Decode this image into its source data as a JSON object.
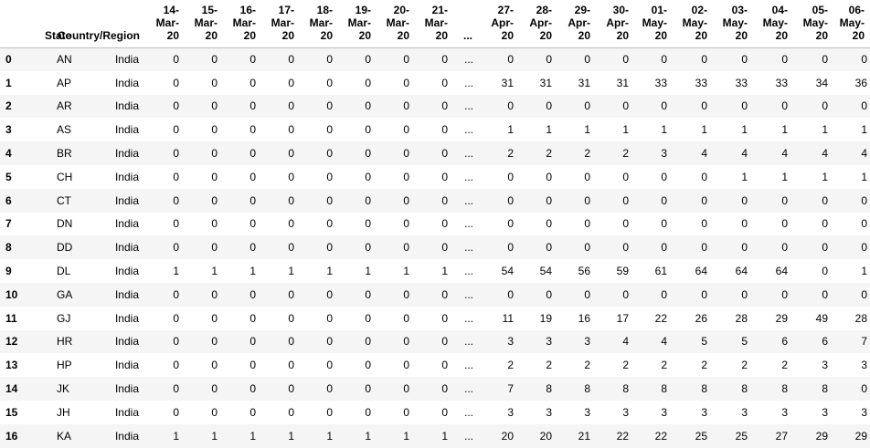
{
  "table": {
    "headers": {
      "index": "",
      "state": "State",
      "country": "Country/Region",
      "dates_left": [
        "14-\nMar-\n20",
        "15-\nMar-\n20",
        "16-\nMar-\n20",
        "17-\nMar-\n20",
        "18-\nMar-\n20",
        "19-\nMar-\n20",
        "20-\nMar-\n20",
        "21-\nMar-\n20"
      ],
      "ellipsis": "...",
      "dates_right": [
        "27-\nApr-\n20",
        "28-\nApr-\n20",
        "29-\nApr-\n20",
        "30-\nApr-\n20",
        "01-\nMay-\n20",
        "02-\nMay-\n20",
        "03-\nMay-\n20",
        "04-\nMay-\n20",
        "05-\nMay-\n20",
        "06-\nMay-\n20"
      ]
    },
    "rows": [
      {
        "index": "0",
        "state": "AN",
        "country": "India",
        "left": [
          "0",
          "0",
          "0",
          "0",
          "0",
          "0",
          "0",
          "0"
        ],
        "ellipsis": "...",
        "right": [
          "0",
          "0",
          "0",
          "0",
          "0",
          "0",
          "0",
          "0",
          "0",
          "0"
        ]
      },
      {
        "index": "1",
        "state": "AP",
        "country": "India",
        "left": [
          "0",
          "0",
          "0",
          "0",
          "0",
          "0",
          "0",
          "0"
        ],
        "ellipsis": "...",
        "right": [
          "31",
          "31",
          "31",
          "31",
          "33",
          "33",
          "33",
          "33",
          "34",
          "36"
        ]
      },
      {
        "index": "2",
        "state": "AR",
        "country": "India",
        "left": [
          "0",
          "0",
          "0",
          "0",
          "0",
          "0",
          "0",
          "0"
        ],
        "ellipsis": "...",
        "right": [
          "0",
          "0",
          "0",
          "0",
          "0",
          "0",
          "0",
          "0",
          "0",
          "0"
        ]
      },
      {
        "index": "3",
        "state": "AS",
        "country": "India",
        "left": [
          "0",
          "0",
          "0",
          "0",
          "0",
          "0",
          "0",
          "0"
        ],
        "ellipsis": "...",
        "right": [
          "1",
          "1",
          "1",
          "1",
          "1",
          "1",
          "1",
          "1",
          "1",
          "1"
        ]
      },
      {
        "index": "4",
        "state": "BR",
        "country": "India",
        "left": [
          "0",
          "0",
          "0",
          "0",
          "0",
          "0",
          "0",
          "0"
        ],
        "ellipsis": "...",
        "right": [
          "2",
          "2",
          "2",
          "2",
          "3",
          "4",
          "4",
          "4",
          "4",
          "4"
        ]
      },
      {
        "index": "5",
        "state": "CH",
        "country": "India",
        "left": [
          "0",
          "0",
          "0",
          "0",
          "0",
          "0",
          "0",
          "0"
        ],
        "ellipsis": "...",
        "right": [
          "0",
          "0",
          "0",
          "0",
          "0",
          "0",
          "1",
          "1",
          "1",
          "1"
        ]
      },
      {
        "index": "6",
        "state": "CT",
        "country": "India",
        "left": [
          "0",
          "0",
          "0",
          "0",
          "0",
          "0",
          "0",
          "0"
        ],
        "ellipsis": "...",
        "right": [
          "0",
          "0",
          "0",
          "0",
          "0",
          "0",
          "0",
          "0",
          "0",
          "0"
        ]
      },
      {
        "index": "7",
        "state": "DN",
        "country": "India",
        "left": [
          "0",
          "0",
          "0",
          "0",
          "0",
          "0",
          "0",
          "0"
        ],
        "ellipsis": "...",
        "right": [
          "0",
          "0",
          "0",
          "0",
          "0",
          "0",
          "0",
          "0",
          "0",
          "0"
        ]
      },
      {
        "index": "8",
        "state": "DD",
        "country": "India",
        "left": [
          "0",
          "0",
          "0",
          "0",
          "0",
          "0",
          "0",
          "0"
        ],
        "ellipsis": "...",
        "right": [
          "0",
          "0",
          "0",
          "0",
          "0",
          "0",
          "0",
          "0",
          "0",
          "0"
        ]
      },
      {
        "index": "9",
        "state": "DL",
        "country": "India",
        "left": [
          "1",
          "1",
          "1",
          "1",
          "1",
          "1",
          "1",
          "1"
        ],
        "ellipsis": "...",
        "right": [
          "54",
          "54",
          "56",
          "59",
          "61",
          "64",
          "64",
          "64",
          "0",
          "1"
        ]
      },
      {
        "index": "10",
        "state": "GA",
        "country": "India",
        "left": [
          "0",
          "0",
          "0",
          "0",
          "0",
          "0",
          "0",
          "0"
        ],
        "ellipsis": "...",
        "right": [
          "0",
          "0",
          "0",
          "0",
          "0",
          "0",
          "0",
          "0",
          "0",
          "0"
        ]
      },
      {
        "index": "11",
        "state": "GJ",
        "country": "India",
        "left": [
          "0",
          "0",
          "0",
          "0",
          "0",
          "0",
          "0",
          "0"
        ],
        "ellipsis": "...",
        "right": [
          "11",
          "19",
          "16",
          "17",
          "22",
          "26",
          "28",
          "29",
          "49",
          "28"
        ]
      },
      {
        "index": "12",
        "state": "HR",
        "country": "India",
        "left": [
          "0",
          "0",
          "0",
          "0",
          "0",
          "0",
          "0",
          "0"
        ],
        "ellipsis": "...",
        "right": [
          "3",
          "3",
          "3",
          "4",
          "4",
          "5",
          "5",
          "6",
          "6",
          "7"
        ]
      },
      {
        "index": "13",
        "state": "HP",
        "country": "India",
        "left": [
          "0",
          "0",
          "0",
          "0",
          "0",
          "0",
          "0",
          "0"
        ],
        "ellipsis": "...",
        "right": [
          "2",
          "2",
          "2",
          "2",
          "2",
          "2",
          "2",
          "2",
          "3",
          "3"
        ]
      },
      {
        "index": "14",
        "state": "JK",
        "country": "India",
        "left": [
          "0",
          "0",
          "0",
          "0",
          "0",
          "0",
          "0",
          "0"
        ],
        "ellipsis": "...",
        "right": [
          "7",
          "8",
          "8",
          "8",
          "8",
          "8",
          "8",
          "8",
          "8",
          "0"
        ]
      },
      {
        "index": "15",
        "state": "JH",
        "country": "India",
        "left": [
          "0",
          "0",
          "0",
          "0",
          "0",
          "0",
          "0",
          "0"
        ],
        "ellipsis": "...",
        "right": [
          "3",
          "3",
          "3",
          "3",
          "3",
          "3",
          "3",
          "3",
          "3",
          "3"
        ]
      },
      {
        "index": "16",
        "state": "KA",
        "country": "India",
        "left": [
          "1",
          "1",
          "1",
          "1",
          "1",
          "1",
          "1",
          "1"
        ],
        "ellipsis": "...",
        "right": [
          "20",
          "20",
          "21",
          "22",
          "22",
          "25",
          "25",
          "27",
          "29",
          "29"
        ]
      }
    ]
  }
}
